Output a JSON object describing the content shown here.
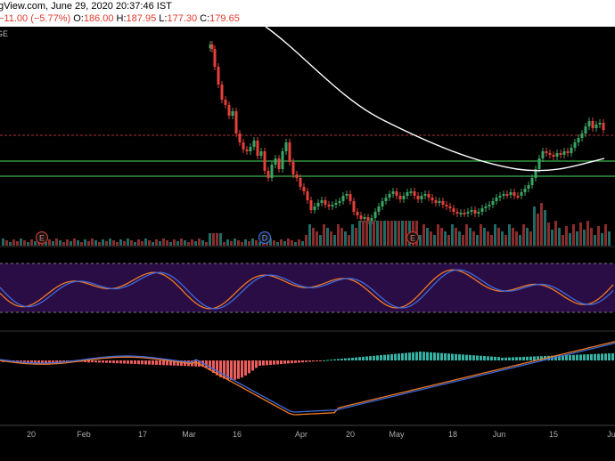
{
  "header": {
    "title": "gView.com, June 29, 2020 20:37:46 IST",
    "change": "−11.00 (−5.77%)",
    "open_label": "O:",
    "open": "186.00",
    "high_label": "H:",
    "high": "187.95",
    "low_label": "L:",
    "low": "177.30",
    "close_label": "C:",
    "close": "179.65"
  },
  "price_pane": {
    "corner_text": "GE",
    "event_markers": [
      "E",
      "D",
      "E"
    ],
    "colors": {
      "up": "#3aa563",
      "down": "#e5403a",
      "ma_line": "#ffffff",
      "support_lines": "#3fb44d",
      "resistance_line": "#b03030"
    }
  },
  "stochastic_pane": {
    "colors": {
      "fast": "#3d6bdb",
      "slow": "#f07a25",
      "band": "#2b0d45"
    }
  },
  "macd_pane": {
    "colors": {
      "macd": "#3d6bdb",
      "signal": "#f07a25",
      "hist_pos": "#35b2a4",
      "hist_neg": "#ea5d5d"
    }
  },
  "x_axis": {
    "ticks": [
      "20",
      "Feb",
      "17",
      "Mar",
      "16",
      "Apr",
      "20",
      "May",
      "18",
      "Jun",
      "15",
      "Ju"
    ]
  },
  "chart_data": {
    "type": "candlestick",
    "tick_labels": [
      "20",
      "Feb",
      "17",
      "Mar",
      "16",
      "Apr",
      "20",
      "May",
      "18",
      "Jun",
      "15",
      "Ju"
    ],
    "markers": [
      "E",
      "D",
      "E"
    ]
  }
}
